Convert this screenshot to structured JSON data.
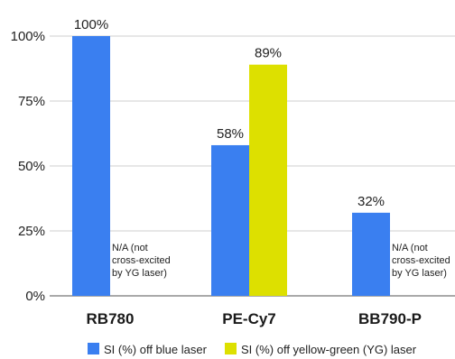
{
  "chart_data": {
    "type": "bar",
    "categories": [
      "RB780",
      "PE-Cy7",
      "BB790-P"
    ],
    "series": [
      {
        "name": "SI (%) off blue laser",
        "color": "#3a7ff0",
        "values": [
          100,
          58,
          32
        ],
        "labels": [
          "100%",
          "58%",
          "32%"
        ]
      },
      {
        "name": "SI (%) off yellow-green (YG) laser",
        "color": "#dde000",
        "values": [
          null,
          89,
          null
        ],
        "labels": [
          "",
          "89%",
          ""
        ]
      }
    ],
    "yticks": [
      {
        "value": 0,
        "label": "0%"
      },
      {
        "value": 25,
        "label": "25%"
      },
      {
        "value": 50,
        "label": "50%"
      },
      {
        "value": 75,
        "label": "75%"
      },
      {
        "value": 100,
        "label": "100%"
      }
    ],
    "ylim": [
      0,
      100
    ],
    "grid": true,
    "legend_position": "bottom",
    "annotations": [
      {
        "category_index": 0,
        "lines": [
          "N/A (not",
          "cross-excited",
          "by YG laser)"
        ]
      },
      {
        "category_index": 2,
        "lines": [
          "N/A (not",
          "cross-excited",
          "by YG laser)"
        ]
      }
    ]
  }
}
